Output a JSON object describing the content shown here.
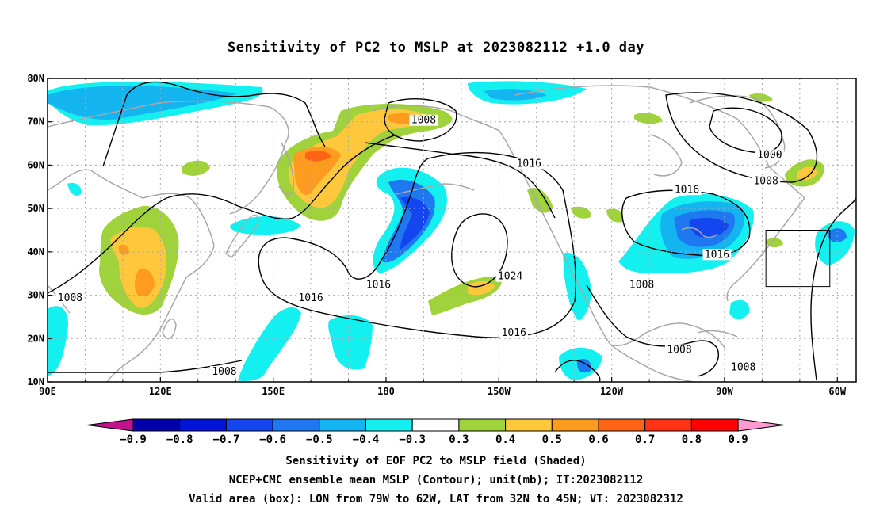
{
  "title": "Sensitivity of PC2 to MSLP at 2023082112 +1.0 day",
  "map": {
    "lon_labels": [
      "90E",
      "120E",
      "150E",
      "180",
      "150W",
      "120W",
      "90W",
      "60W"
    ],
    "lat_labels": [
      "80N",
      "70N",
      "60N",
      "50N",
      "40N",
      "30N",
      "20N",
      "10N"
    ],
    "contour_labels": [
      {
        "text": "1008",
        "lon": 190,
        "lat": 70
      },
      {
        "text": "1000",
        "lon": 282,
        "lat": 62
      },
      {
        "text": "1016",
        "lon": 218,
        "lat": 60
      },
      {
        "text": "1016",
        "lon": 260,
        "lat": 54
      },
      {
        "text": "1008",
        "lon": 281,
        "lat": 56
      },
      {
        "text": "1016",
        "lon": 268,
        "lat": 39
      },
      {
        "text": "1024",
        "lon": 213,
        "lat": 34
      },
      {
        "text": "1016",
        "lon": 178,
        "lat": 32
      },
      {
        "text": "1016",
        "lon": 160,
        "lat": 29
      },
      {
        "text": "1008",
        "lon": 248,
        "lat": 32
      },
      {
        "text": "1016",
        "lon": 214,
        "lat": 21
      },
      {
        "text": "1008",
        "lon": 96,
        "lat": 29
      },
      {
        "text": "1008",
        "lon": 137,
        "lat": 12
      },
      {
        "text": "1008",
        "lon": 258,
        "lat": 17
      },
      {
        "text": "1008",
        "lon": 275,
        "lat": 13
      }
    ],
    "valid_box": {
      "lon_min": -79,
      "lon_max": -62,
      "lat_min": 32,
      "lat_max": 45
    }
  },
  "colorbar": {
    "labels": [
      "−0.9",
      "−0.8",
      "−0.7",
      "−0.6",
      "−0.5",
      "−0.4",
      "−0.3",
      "0.3",
      "0.4",
      "0.5",
      "0.6",
      "0.7",
      "0.8",
      "0.9"
    ],
    "colors": {
      "neg_tip": "#c0148c",
      "neg": [
        "#0000a8",
        "#0014d8",
        "#1446f0",
        "#1e78f0",
        "#14b4f0",
        "#14f0f0"
      ],
      "zero": "#ffffff",
      "pos": [
        "#a0d23c",
        "#ffc83c",
        "#ff9b1e",
        "#ff6414",
        "#ff3214",
        "#ff0000"
      ],
      "pos_tip": "#ff9bd2"
    }
  },
  "captions": [
    "Sensitivity of EOF PC2 to MSLP field (Shaded)",
    "NCEP+CMC ensemble mean MSLP (Contour); unit(mb); IT:2023082112",
    "Valid area (box): LON from 79W to 62W, LAT from 32N to 45N; VT: 2023082312"
  ]
}
